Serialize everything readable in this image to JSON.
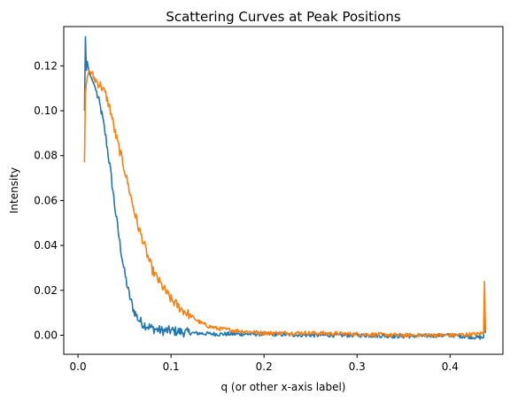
{
  "chart_data": {
    "type": "line",
    "title": "Scattering Curves at Peak Positions",
    "xlabel": "q (or other x-axis label)",
    "ylabel": "Intensity",
    "xlim": [
      -0.0153,
      0.4568
    ],
    "ylim": [
      -0.0085,
      0.1375
    ],
    "x_ticks": [
      0.0,
      0.1,
      0.2,
      0.3,
      0.4
    ],
    "x_tick_labels": [
      "0.0",
      "0.1",
      "0.2",
      "0.3",
      "0.4"
    ],
    "y_ticks": [
      0.0,
      0.02,
      0.04,
      0.06,
      0.08,
      0.1,
      0.12
    ],
    "y_tick_labels": [
      "0.00",
      "0.02",
      "0.04",
      "0.06",
      "0.08",
      "0.10",
      "0.12"
    ],
    "grid": false,
    "legend": "none",
    "series": [
      {
        "color": "#1f77b4",
        "x": [
          0.007,
          0.008,
          0.009,
          0.01,
          0.012,
          0.015,
          0.018,
          0.02,
          0.025,
          0.03,
          0.035,
          0.04,
          0.045,
          0.05,
          0.055,
          0.06,
          0.065,
          0.07,
          0.08,
          0.09,
          0.1,
          0.12,
          0.15,
          0.2,
          0.25,
          0.3,
          0.35,
          0.4,
          0.43,
          0.436,
          0.437,
          0.438
        ],
        "y": [
          0.1,
          0.133,
          0.118,
          0.122,
          0.117,
          0.114,
          0.111,
          0.108,
          0.1,
          0.088,
          0.073,
          0.056,
          0.041,
          0.028,
          0.018,
          0.011,
          0.007,
          0.005,
          0.003,
          0.002,
          0.002,
          0.001,
          0.0005,
          0.0005,
          0.0,
          0.0,
          -0.0005,
          0.0,
          -0.001,
          -0.001,
          0.014,
          0.001
        ]
      },
      {
        "color": "#ff7f0e",
        "x": [
          0.007,
          0.008,
          0.009,
          0.01,
          0.012,
          0.015,
          0.02,
          0.025,
          0.03,
          0.035,
          0.04,
          0.045,
          0.05,
          0.055,
          0.06,
          0.065,
          0.07,
          0.075,
          0.08,
          0.09,
          0.1,
          0.11,
          0.12,
          0.13,
          0.14,
          0.15,
          0.17,
          0.2,
          0.25,
          0.3,
          0.35,
          0.4,
          0.43,
          0.436,
          0.437,
          0.438
        ],
        "y": [
          0.077,
          0.108,
          0.112,
          0.115,
          0.118,
          0.116,
          0.113,
          0.111,
          0.107,
          0.1,
          0.09,
          0.082,
          0.074,
          0.065,
          0.056,
          0.048,
          0.042,
          0.035,
          0.029,
          0.022,
          0.016,
          0.012,
          0.009,
          0.006,
          0.004,
          0.003,
          0.002,
          0.001,
          0.001,
          0.0005,
          0.0,
          0.0,
          0.0005,
          0.001,
          0.024,
          0.002
        ]
      }
    ]
  }
}
